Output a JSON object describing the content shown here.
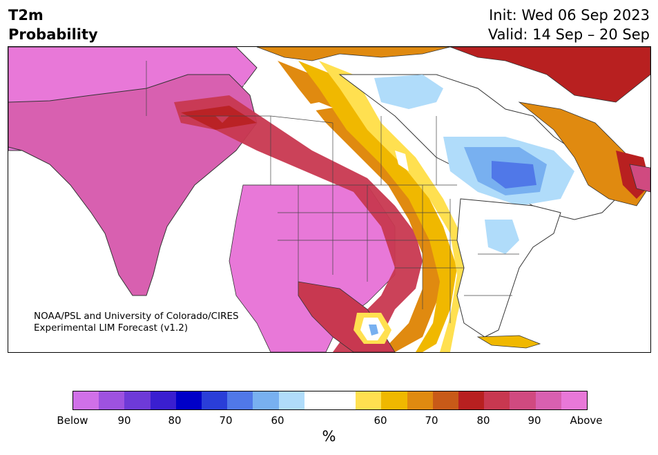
{
  "title": {
    "left_line1": "T2m",
    "left_line2": "Probability",
    "init": "Init: Wed 06 Sep 2023",
    "valid": "Valid: 14 Sep – 20 Sep"
  },
  "map": {
    "region": "North America",
    "credit_line1": "NOAA/PSL and University of Colorado/CIRES",
    "credit_line2": "Experimental LIM Forecast (v1.2)"
  },
  "colorbar": {
    "unit": "%",
    "tick_labels": [
      "Below",
      "90",
      "80",
      "70",
      "60",
      "60",
      "70",
      "80",
      "90",
      "Above"
    ],
    "colors": [
      "#d070e8",
      "#9e52e0",
      "#6e3ad8",
      "#3a1fd0",
      "#0000c8",
      "#2a3ed8",
      "#5078e8",
      "#78b0f0",
      "#b0dcfa",
      "#ffffff",
      "#ffffff",
      "#ffe050",
      "#f0b800",
      "#e08a10",
      "#c85a18",
      "#b82020",
      "#c83850",
      "#d04a80",
      "#d860b0",
      "#e878d8"
    ]
  },
  "legend_colors": {
    "above_far": "#e878d8",
    "above_90": "#d860b0",
    "above_80": "#c83850",
    "above_70": "#b82020",
    "above_65": "#c85a18",
    "above_60": "#e08a10",
    "above_55": "#f0b800",
    "above_50": "#ffe050",
    "below_50": "#b0dcfa",
    "below_60": "#78b0f0",
    "below_70": "#5078e8"
  }
}
